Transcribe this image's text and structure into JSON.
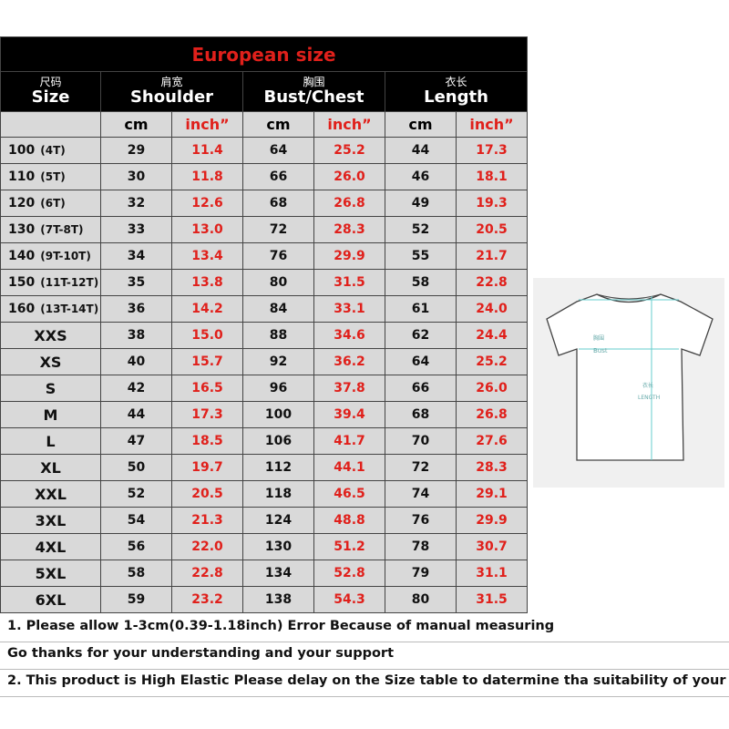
{
  "title": "European size",
  "columns": [
    {
      "zh": "尺码",
      "en": "Size"
    },
    {
      "zh": "肩宽",
      "en": "Shoulder"
    },
    {
      "zh": "胸围",
      "en": "Bust/Chest"
    },
    {
      "zh": "衣长",
      "en": "Length"
    }
  ],
  "units": [
    "cm",
    "inch”",
    "cm",
    "inch”",
    "cm",
    "inch”"
  ],
  "rows": [
    {
      "size": "100",
      "age": "(4T)",
      "values": [
        "29",
        "11.4",
        "64",
        "25.2",
        "44",
        "17.3"
      ]
    },
    {
      "size": "110",
      "age": "(5T)",
      "values": [
        "30",
        "11.8",
        "66",
        "26.0",
        "46",
        "18.1"
      ]
    },
    {
      "size": "120",
      "age": "(6T)",
      "values": [
        "32",
        "12.6",
        "68",
        "26.8",
        "49",
        "19.3"
      ]
    },
    {
      "size": "130",
      "age": "(7T-8T)",
      "values": [
        "33",
        "13.0",
        "72",
        "28.3",
        "52",
        "20.5"
      ]
    },
    {
      "size": "140",
      "age": "(9T-10T)",
      "values": [
        "34",
        "13.4",
        "76",
        "29.9",
        "55",
        "21.7"
      ]
    },
    {
      "size": "150",
      "age": "(11T-12T)",
      "values": [
        "35",
        "13.8",
        "80",
        "31.5",
        "58",
        "22.8"
      ]
    },
    {
      "size": "160",
      "age": "(13T-14T)",
      "values": [
        "36",
        "14.2",
        "84",
        "33.1",
        "61",
        "24.0"
      ]
    },
    {
      "size": "XXS",
      "values": [
        "38",
        "15.0",
        "88",
        "34.6",
        "62",
        "24.4"
      ]
    },
    {
      "size": "XS",
      "values": [
        "40",
        "15.7",
        "92",
        "36.2",
        "64",
        "25.2"
      ]
    },
    {
      "size": "S",
      "values": [
        "42",
        "16.5",
        "96",
        "37.8",
        "66",
        "26.0"
      ]
    },
    {
      "size": "M",
      "values": [
        "44",
        "17.3",
        "100",
        "39.4",
        "68",
        "26.8"
      ]
    },
    {
      "size": "L",
      "values": [
        "47",
        "18.5",
        "106",
        "41.7",
        "70",
        "27.6"
      ]
    },
    {
      "size": "XL",
      "values": [
        "50",
        "19.7",
        "112",
        "44.1",
        "72",
        "28.3"
      ]
    },
    {
      "size": "XXL",
      "values": [
        "52",
        "20.5",
        "118",
        "46.5",
        "74",
        "29.1"
      ]
    },
    {
      "size": "3XL",
      "values": [
        "54",
        "21.3",
        "124",
        "48.8",
        "76",
        "29.9"
      ]
    },
    {
      "size": "4XL",
      "values": [
        "56",
        "22.0",
        "130",
        "51.2",
        "78",
        "30.7"
      ]
    },
    {
      "size": "5XL",
      "values": [
        "58",
        "22.8",
        "134",
        "52.8",
        "79",
        "31.1"
      ]
    },
    {
      "size": "6XL",
      "values": [
        "59",
        "23.2",
        "138",
        "54.3",
        "80",
        "31.5"
      ]
    }
  ],
  "diagram": {
    "bust_zh": "胸围",
    "bust": "Bust",
    "length_zh": "衣长",
    "length": "LENGTH"
  },
  "notes": [
    "1. Please allow 1-3cm(0.39-1.18inch) Error Because of manual measuring",
    "Go thanks for your understanding and your support",
    "2. This product is High Elastic  Please delay on the Size table to datermine tha suitability of your"
  ]
}
